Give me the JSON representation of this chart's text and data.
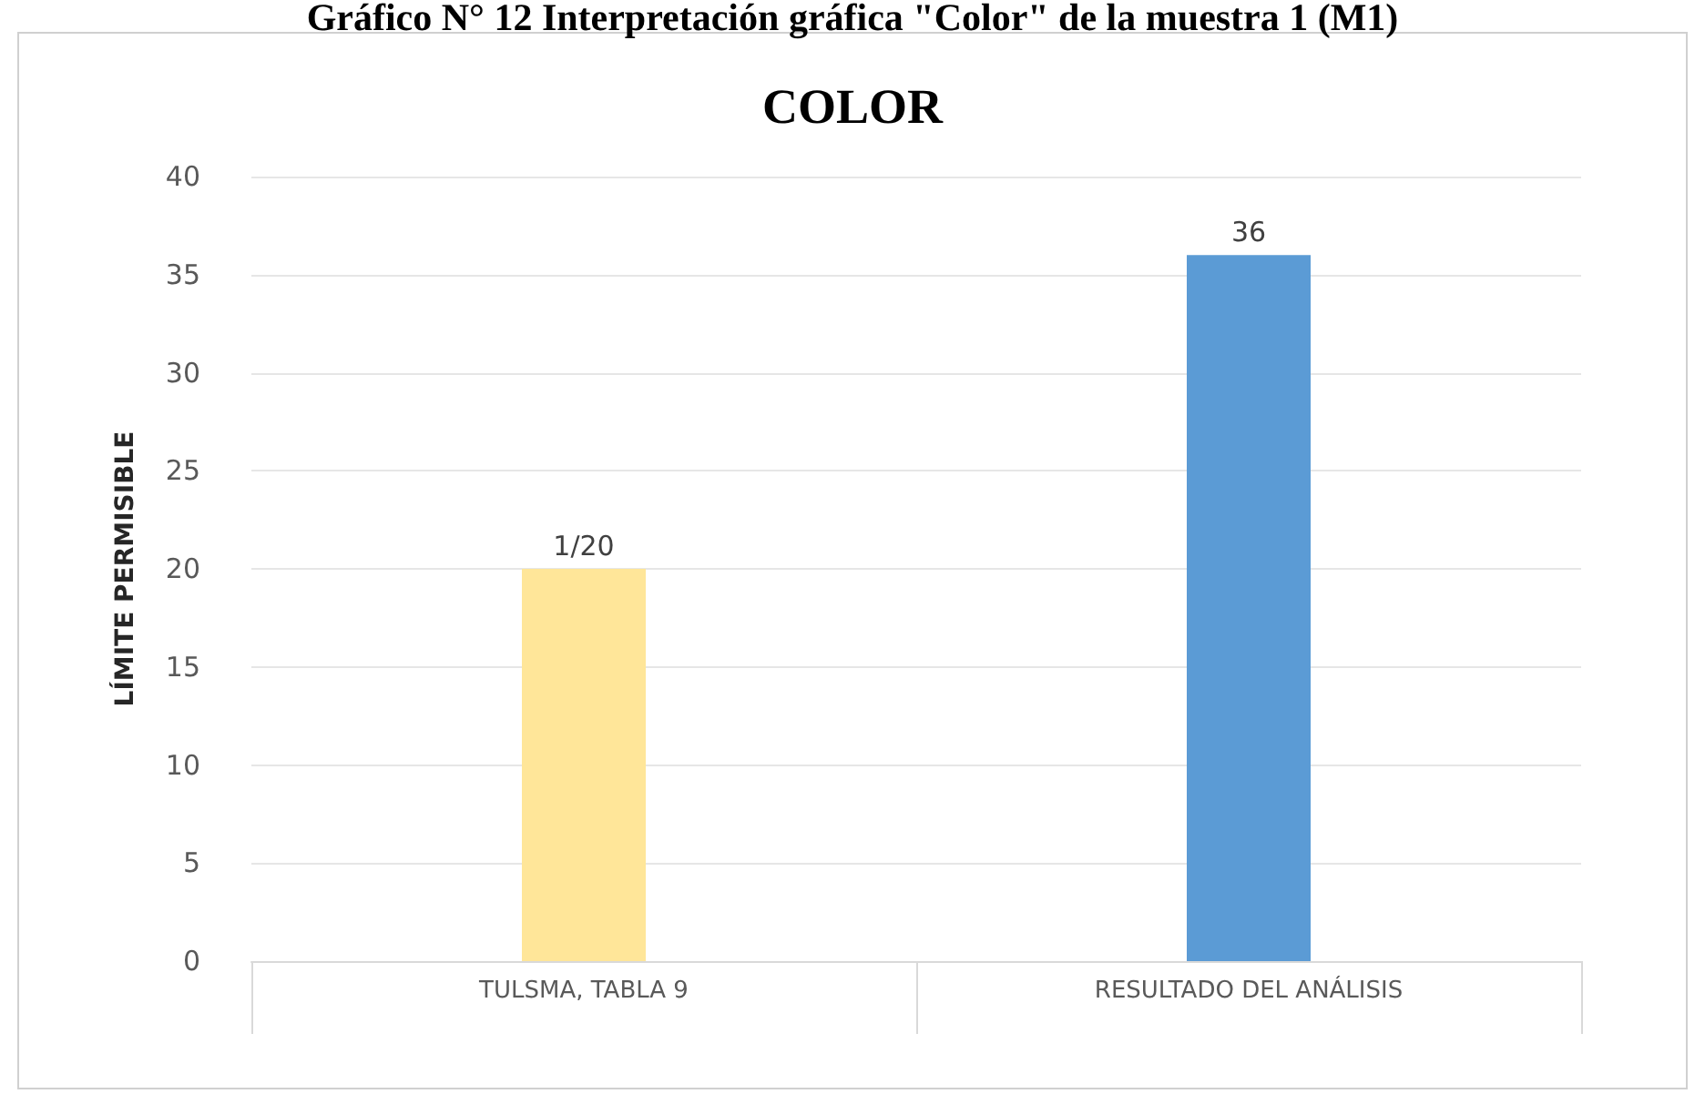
{
  "chart_data": {
    "type": "bar",
    "title": "Gráfico N° 12 Interpretación gráfica \"Color\" de la muestra 1 (M1)",
    "subtitle": "COLOR",
    "ylabel": "LÍMITE PERMISIBLE",
    "categories": [
      "TULSMA, TABLA 9",
      "RESULTADO DEL ANÁLISIS"
    ],
    "values": [
      20,
      36
    ],
    "colors": [
      "#ffe699",
      "#5b9bd5"
    ],
    "value_labels": [
      "1/20",
      "36"
    ],
    "ylim": [
      0,
      40
    ],
    "yticks": [
      0,
      5,
      10,
      15,
      20,
      25,
      30,
      35,
      40
    ],
    "grid": "y"
  }
}
